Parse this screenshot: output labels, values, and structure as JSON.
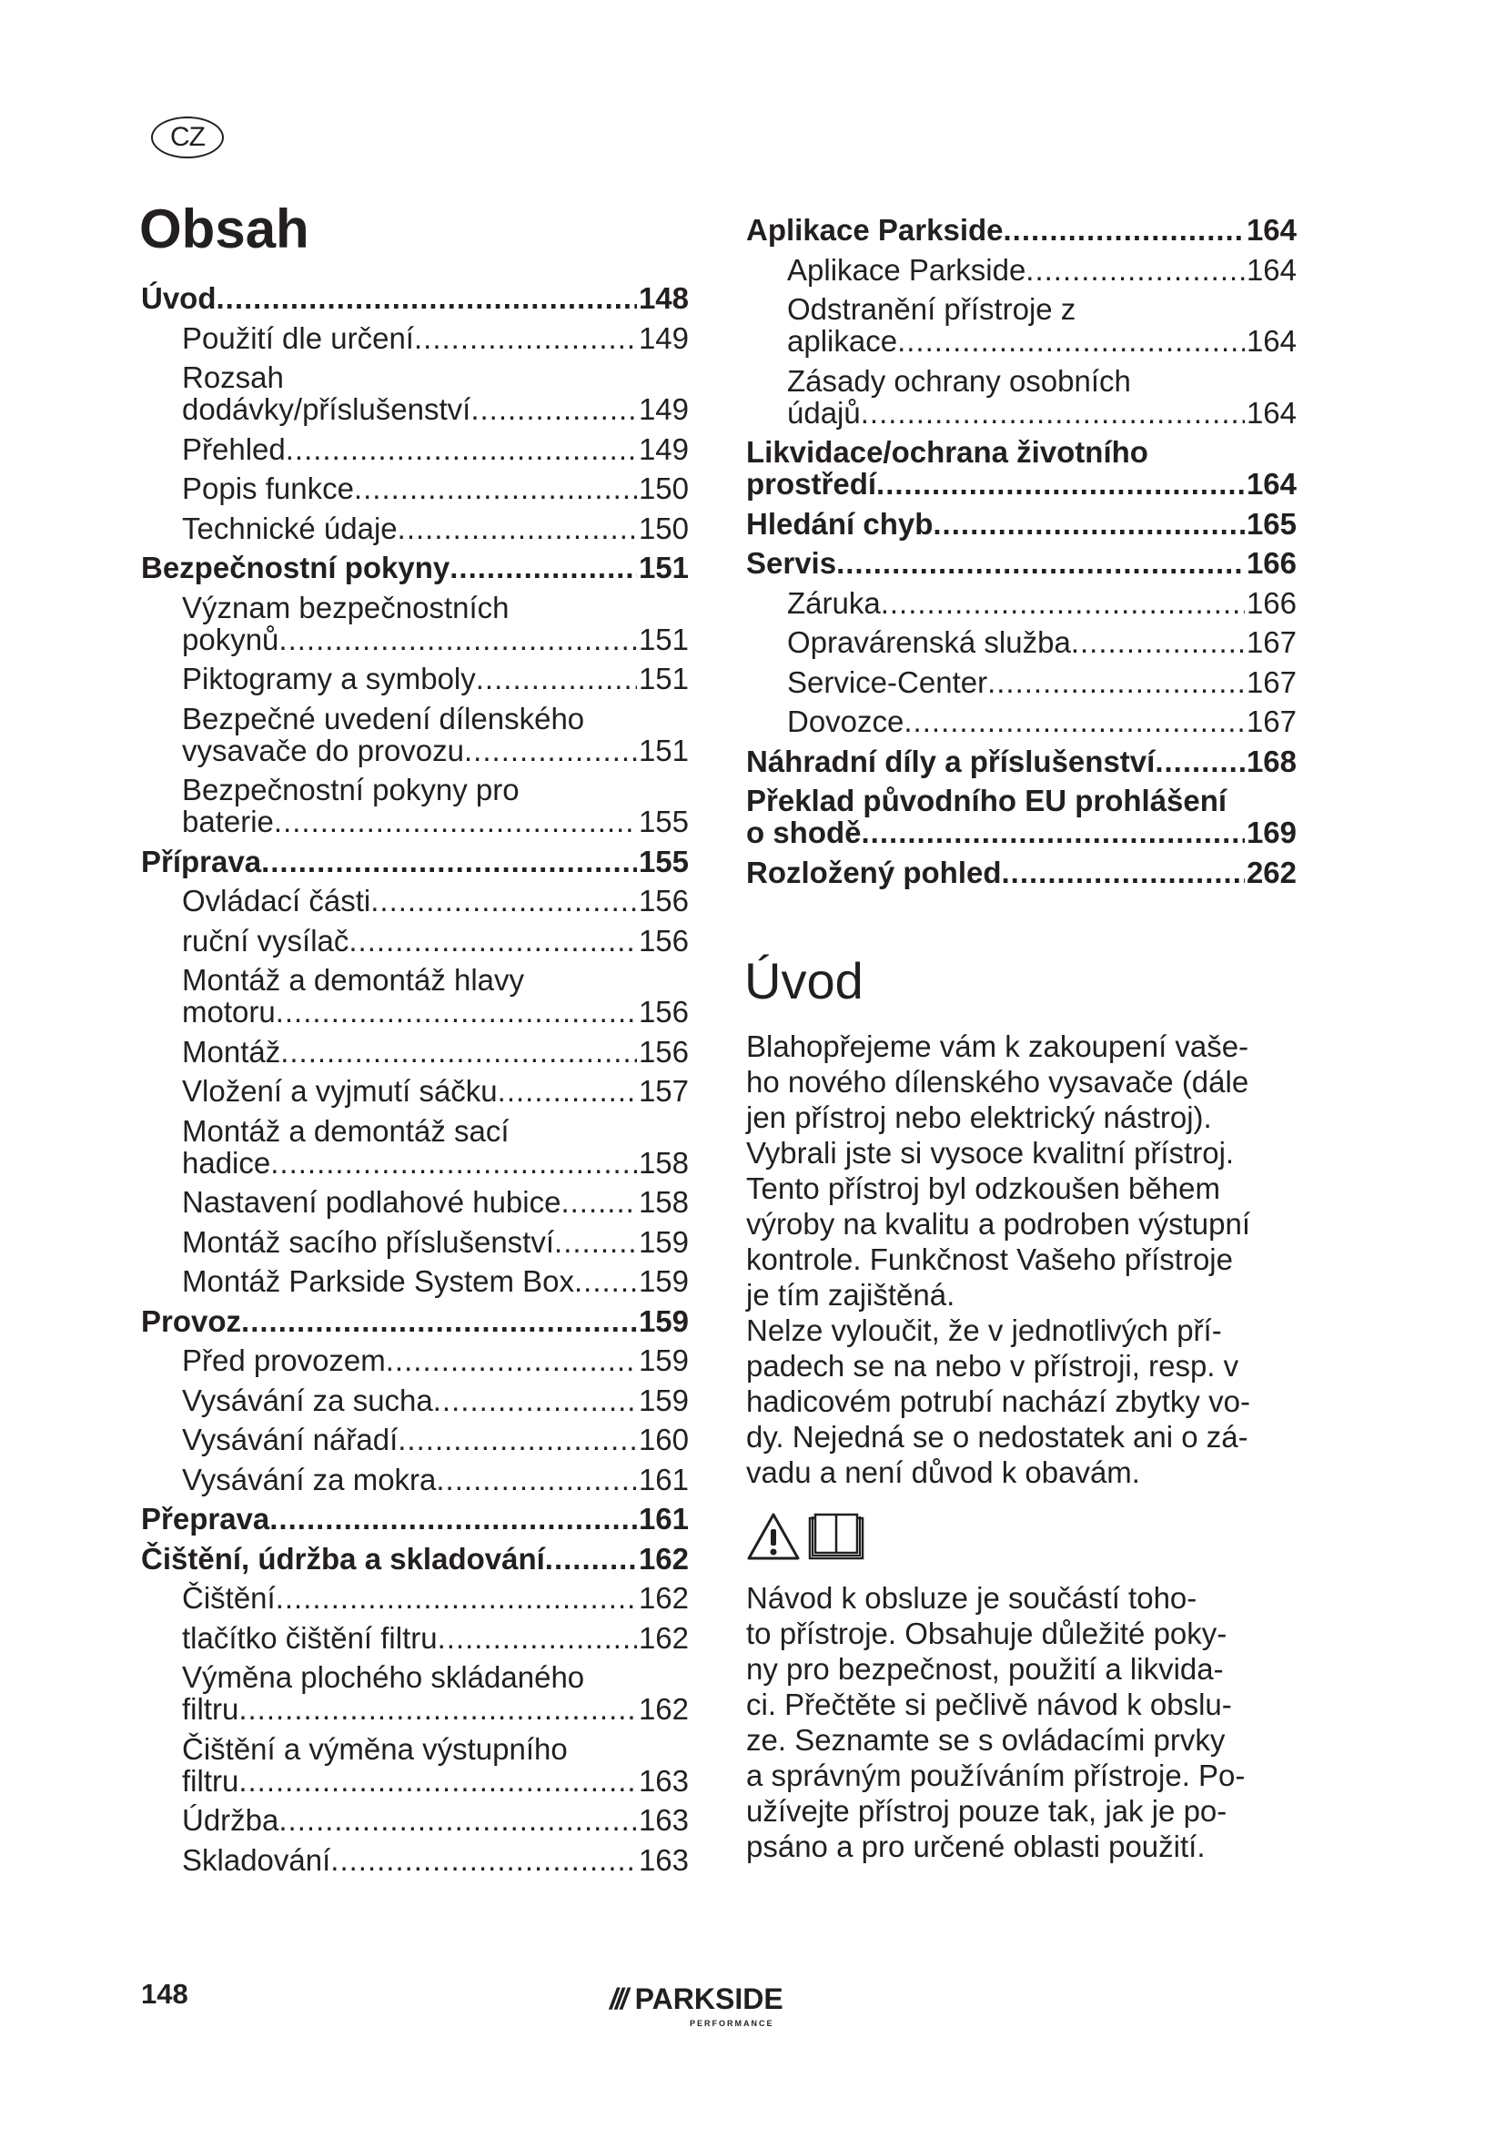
{
  "language_badge": "CZ",
  "toc": {
    "title": "Obsah",
    "left": [
      {
        "label": [
          "Úvod"
        ],
        "page": "148",
        "level": "head"
      },
      {
        "label": [
          "Použití dle určení"
        ],
        "page": "149",
        "level": "sub"
      },
      {
        "label": [
          "Rozsah",
          "dodávky/příslušenství"
        ],
        "page": "149",
        "level": "sub"
      },
      {
        "label": [
          "Přehled"
        ],
        "page": "149",
        "level": "sub"
      },
      {
        "label": [
          "Popis funkce"
        ],
        "page": "150",
        "level": "sub"
      },
      {
        "label": [
          "Technické údaje"
        ],
        "page": "150",
        "level": "sub"
      },
      {
        "label": [
          "Bezpečnostní pokyny"
        ],
        "page": "151",
        "level": "head"
      },
      {
        "label": [
          "Význam bezpečnostních",
          "pokynů"
        ],
        "page": "151",
        "level": "sub"
      },
      {
        "label": [
          "Piktogramy a symboly"
        ],
        "page": "151",
        "level": "sub"
      },
      {
        "label": [
          "Bezpečné uvedení dílenského",
          "vysavače do provozu"
        ],
        "page": "151",
        "level": "sub"
      },
      {
        "label": [
          "Bezpečnostní pokyny pro",
          "baterie"
        ],
        "page": "155",
        "level": "sub"
      },
      {
        "label": [
          "Příprava"
        ],
        "page": "155",
        "level": "head"
      },
      {
        "label": [
          "Ovládací části"
        ],
        "page": "156",
        "level": "sub"
      },
      {
        "label": [
          "ruční vysílač"
        ],
        "page": "156",
        "level": "sub"
      },
      {
        "label": [
          "Montáž a demontáž hlavy",
          "motoru"
        ],
        "page": "156",
        "level": "sub"
      },
      {
        "label": [
          "Montáž"
        ],
        "page": "156",
        "level": "sub"
      },
      {
        "label": [
          "Vložení a vyjmutí sáčku"
        ],
        "page": "157",
        "level": "sub"
      },
      {
        "label": [
          "Montáž a demontáž sací",
          "hadice"
        ],
        "page": "158",
        "level": "sub"
      },
      {
        "label": [
          "Nastavení podlahové hubice"
        ],
        "page": "158",
        "level": "sub"
      },
      {
        "label": [
          "Montáž sacího příslušenství"
        ],
        "page": "159",
        "level": "sub"
      },
      {
        "label": [
          "Montáž Parkside System Box"
        ],
        "page": "159",
        "level": "sub"
      },
      {
        "label": [
          "Provoz"
        ],
        "page": "159",
        "level": "head"
      },
      {
        "label": [
          "Před provozem"
        ],
        "page": "159",
        "level": "sub"
      },
      {
        "label": [
          "Vysávání za sucha"
        ],
        "page": "159",
        "level": "sub"
      },
      {
        "label": [
          "Vysávání nářadí"
        ],
        "page": "160",
        "level": "sub"
      },
      {
        "label": [
          "Vysávání za mokra"
        ],
        "page": "161",
        "level": "sub"
      },
      {
        "label": [
          "Přeprava"
        ],
        "page": "161",
        "level": "head"
      },
      {
        "label": [
          "Čištění, údržba a skladování"
        ],
        "page": "162",
        "level": "head"
      },
      {
        "label": [
          "Čištění"
        ],
        "page": "162",
        "level": "sub"
      },
      {
        "label": [
          "tlačítko čištění filtru"
        ],
        "page": "162",
        "level": "sub"
      },
      {
        "label": [
          "Výměna plochého skládaného",
          "filtru"
        ],
        "page": "162",
        "level": "sub"
      },
      {
        "label": [
          "Čištění a výměna výstupního",
          "filtru"
        ],
        "page": "163",
        "level": "sub"
      },
      {
        "label": [
          "Údržba"
        ],
        "page": "163",
        "level": "sub"
      },
      {
        "label": [
          "Skladování"
        ],
        "page": "163",
        "level": "sub"
      }
    ],
    "right": [
      {
        "label": [
          "Aplikace Parkside"
        ],
        "page": "164",
        "level": "head"
      },
      {
        "label": [
          "Aplikace Parkside"
        ],
        "page": "164",
        "level": "sub"
      },
      {
        "label": [
          "Odstranění přístroje z",
          "aplikace"
        ],
        "page": "164",
        "level": "sub"
      },
      {
        "label": [
          "Zásady ochrany osobních",
          "údajů"
        ],
        "page": "164",
        "level": "sub"
      },
      {
        "label": [
          "Likvidace/ochrana životního",
          "prostředí"
        ],
        "page": "164",
        "level": "head"
      },
      {
        "label": [
          "Hledání chyb"
        ],
        "page": "165",
        "level": "head"
      },
      {
        "label": [
          "Servis"
        ],
        "page": "166",
        "level": "head"
      },
      {
        "label": [
          "Záruka"
        ],
        "page": "166",
        "level": "sub"
      },
      {
        "label": [
          "Opravárenská služba"
        ],
        "page": "167",
        "level": "sub"
      },
      {
        "label": [
          "Service-Center"
        ],
        "page": "167",
        "level": "sub"
      },
      {
        "label": [
          "Dovozce"
        ],
        "page": "167",
        "level": "sub"
      },
      {
        "label": [
          "Náhradní díly a příslušenství"
        ],
        "page": "168",
        "level": "head"
      },
      {
        "label": [
          "Překlad původního EU prohlášení",
          "o shodě"
        ],
        "page": "169",
        "level": "head"
      },
      {
        "label": [
          "Rozložený pohled"
        ],
        "page": "262",
        "level": "head"
      }
    ]
  },
  "intro": {
    "heading": "Úvod",
    "paragraph1": [
      "Blahopřejeme vám k zakoupení vaše-",
      "ho nového dílenského vysavače (dále",
      "jen přístroj nebo elektrický nástroj).",
      "Vybrali jste si vysoce kvalitní přístroj.",
      "Tento přístroj byl odzkoušen během",
      "výroby na kvalitu a podroben výstupní",
      "kontrole. Funkčnost Vašeho přístroje",
      "je tím zajištěná.",
      "Nelze vyloučit, že v jednotlivých pří-",
      "padech se na nebo v přístroji, resp. v",
      "hadicovém potrubí nachází zbytky vo-",
      "dy. Nejedná se o nedostatek ani o zá-",
      "vadu a není důvod k obavám."
    ],
    "icons": [
      "warning-triangle-icon",
      "read-manual-book-icon"
    ],
    "paragraph2": [
      "Návod k obsluze je součástí toho-",
      "to přístroje. Obsahuje důležité poky-",
      "ny pro bezpečnost, použití a likvida-",
      "ci. Přečtěte si pečlivě návod k obslu-",
      "ze. Seznamte se s ovládacími prvky",
      "a správným používáním přístroje. Po-",
      "užívejte přístroj pouze tak, jak je po-",
      "psáno a pro určené oblasti použití."
    ]
  },
  "footer": {
    "page_number": "148",
    "logo_text": "PARKSIDE",
    "logo_subtext": "PERFORMANCE"
  }
}
